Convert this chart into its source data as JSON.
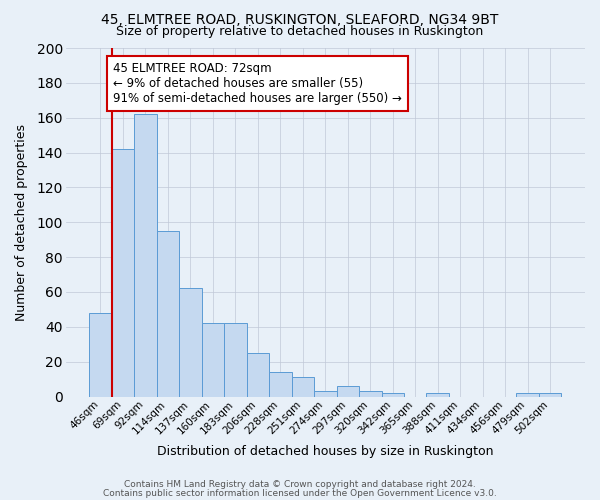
{
  "title1": "45, ELMTREE ROAD, RUSKINGTON, SLEAFORD, NG34 9BT",
  "title2": "Size of property relative to detached houses in Ruskington",
  "xlabel": "Distribution of detached houses by size in Ruskington",
  "ylabel": "Number of detached properties",
  "categories": [
    "46sqm",
    "69sqm",
    "92sqm",
    "114sqm",
    "137sqm",
    "160sqm",
    "183sqm",
    "206sqm",
    "228sqm",
    "251sqm",
    "274sqm",
    "297sqm",
    "320sqm",
    "342sqm",
    "365sqm",
    "388sqm",
    "411sqm",
    "434sqm",
    "456sqm",
    "479sqm",
    "502sqm"
  ],
  "values": [
    48,
    142,
    162,
    95,
    62,
    42,
    42,
    25,
    14,
    11,
    3,
    6,
    3,
    2,
    0,
    2,
    0,
    0,
    0,
    2,
    2
  ],
  "bar_color": "#c5d9f0",
  "bar_edge_color": "#5b9bd5",
  "vline_color": "#cc0000",
  "annotation_text": "45 ELMTREE ROAD: 72sqm\n← 9% of detached houses are smaller (55)\n91% of semi-detached houses are larger (550) →",
  "annotation_box_facecolor": "#ffffff",
  "annotation_box_edgecolor": "#cc0000",
  "ylim": [
    0,
    200
  ],
  "yticks": [
    0,
    20,
    40,
    60,
    80,
    100,
    120,
    140,
    160,
    180,
    200
  ],
  "footer1": "Contains HM Land Registry data © Crown copyright and database right 2024.",
  "footer2": "Contains public sector information licensed under the Open Government Licence v3.0.",
  "background_color": "#e8f0f8",
  "plot_bg_color": "#e8f0f8",
  "grid_color": "#c0c8d8",
  "title1_fontsize": 10,
  "title2_fontsize": 9,
  "axis_label_fontsize": 9,
  "tick_fontsize": 7.5,
  "annotation_fontsize": 8.5,
  "footer_fontsize": 6.5
}
